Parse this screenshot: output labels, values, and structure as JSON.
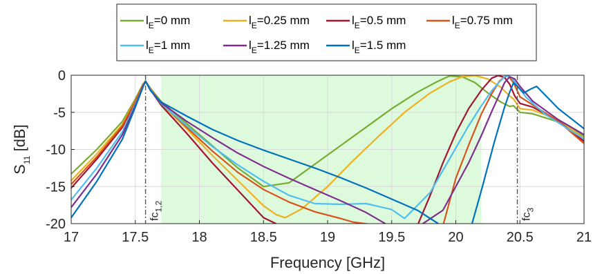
{
  "chart_data": {
    "type": "line",
    "xlabel": "Frequency [GHz]",
    "ylabel_main": "S",
    "ylabel_sub": "11",
    "ylabel_unit": " [dB]",
    "xlim": [
      17,
      21
    ],
    "ylim": [
      -20,
      0
    ],
    "xticks": [
      "17",
      "17.5",
      "18",
      "18.5",
      "19",
      "19.5",
      "20",
      "20.5",
      "21"
    ],
    "xtick_values": [
      17,
      17.5,
      18,
      18.5,
      19,
      19.5,
      20,
      20.5,
      21
    ],
    "yticks": [
      "0",
      "-5",
      "-10",
      "-15",
      "-20"
    ],
    "ytick_values": [
      0,
      -5,
      -10,
      -15,
      -20
    ],
    "grid": true,
    "legend_position": "top-center",
    "highlight_band": {
      "x_start": 17.7,
      "x_end": 20.2,
      "color": "#ddfadd"
    },
    "markers": [
      {
        "x": 17.58,
        "label_main": "fc",
        "label_sub": "1,2"
      },
      {
        "x": 20.48,
        "label_main": "fc",
        "label_sub": "3"
      }
    ],
    "series": [
      {
        "name_main": "l",
        "name_sub": "E",
        "name_rest": "=0 mm",
        "color": "#77ac30",
        "x": [
          17,
          17.2,
          17.4,
          17.5,
          17.56,
          17.58,
          17.62,
          17.7,
          17.9,
          18.1,
          18.3,
          18.5,
          18.7,
          18.9,
          19.1,
          19.3,
          19.5,
          19.7,
          19.85,
          19.95,
          20.05,
          20.15,
          20.25,
          20.35,
          20.42,
          20.45,
          20.5,
          20.6,
          20.8,
          21
        ],
        "y": [
          -13.3,
          -10,
          -6.2,
          -3.2,
          -1.2,
          -0.8,
          -1.8,
          -3.5,
          -6.5,
          -9.5,
          -12.5,
          -15,
          -14.5,
          -12,
          -9.5,
          -7,
          -4.5,
          -2.3,
          -0.9,
          -0.1,
          -0.2,
          -1.0,
          -2.4,
          -3.6,
          -4.2,
          -4.1,
          -5.0,
          -5.2,
          -6.3,
          -8.2
        ]
      },
      {
        "name_main": "l",
        "name_sub": "E",
        "name_rest": "=0.25 mm",
        "color": "#edb120",
        "x": [
          17,
          17.2,
          17.4,
          17.5,
          17.56,
          17.58,
          17.62,
          17.7,
          17.9,
          18.1,
          18.3,
          18.5,
          18.6,
          18.67,
          18.8,
          19.0,
          19.2,
          19.4,
          19.6,
          19.8,
          19.95,
          20.05,
          20.15,
          20.25,
          20.35,
          20.42,
          20.45,
          20.5,
          20.6,
          20.8,
          21
        ],
        "y": [
          -14.2,
          -10.6,
          -6.6,
          -3.4,
          -1.3,
          -0.8,
          -1.9,
          -3.8,
          -7.2,
          -10.8,
          -14.2,
          -17.6,
          -18.8,
          -19.2,
          -18.0,
          -15.0,
          -11.5,
          -8.2,
          -5.0,
          -2.4,
          -0.9,
          -0.2,
          -0.05,
          -0.5,
          -1.6,
          -2.8,
          -3.2,
          -4.5,
          -4.7,
          -6.0,
          -8.5
        ]
      },
      {
        "name_main": "l",
        "name_sub": "E",
        "name_rest": "=0.5 mm",
        "color": "#a2142f",
        "x": [
          17,
          17.2,
          17.4,
          17.5,
          17.56,
          17.58,
          17.62,
          17.7,
          17.9,
          18.1,
          18.3,
          18.5,
          18.62,
          19.7,
          19.8,
          19.9,
          20.0,
          20.1,
          20.2,
          20.28,
          20.33,
          20.38,
          20.42,
          20.46,
          20.5,
          20.6,
          20.8,
          21
        ],
        "y": [
          -15.2,
          -11.3,
          -7.0,
          -3.6,
          -1.4,
          -0.8,
          -2.0,
          -4.0,
          -7.8,
          -11.8,
          -15.5,
          -19.2,
          -20.2,
          -20.3,
          -16.2,
          -11.8,
          -7.8,
          -4.5,
          -2.0,
          -0.4,
          -0.05,
          -0.3,
          -1.2,
          -2.8,
          -3.8,
          -4.3,
          -6.2,
          -8.9
        ]
      },
      {
        "name_main": "l",
        "name_sub": "E",
        "name_rest": "=0.75 mm",
        "color": "#d95319",
        "x": [
          17,
          17.2,
          17.4,
          17.5,
          17.56,
          17.58,
          17.62,
          17.7,
          17.9,
          18.1,
          18.3,
          18.5,
          18.7,
          18.9,
          19.1,
          19.2,
          19.43,
          19.9,
          20.0,
          20.1,
          20.2,
          20.28,
          20.34,
          20.38,
          20.41,
          20.45,
          20.5,
          20.6,
          20.8,
          21
        ],
        "y": [
          -14.7,
          -11.0,
          -6.8,
          -3.5,
          -1.3,
          -0.8,
          -1.9,
          -3.7,
          -7.0,
          -10.2,
          -13.1,
          -15.4,
          -17.1,
          -18.4,
          -19.3,
          -19.8,
          -20.3,
          -20.3,
          -13.9,
          -9.4,
          -5.2,
          -2.5,
          -0.8,
          -0.2,
          -0.1,
          -1.0,
          -2.9,
          -4.0,
          -6.2,
          -9.2
        ]
      },
      {
        "name_main": "l",
        "name_sub": "E",
        "name_rest": "=1 mm",
        "color": "#4dbeee",
        "x": [
          17,
          17.2,
          17.4,
          17.5,
          17.56,
          17.58,
          17.62,
          17.7,
          17.9,
          18.1,
          18.3,
          18.5,
          18.7,
          18.9,
          19.1,
          19.3,
          19.5,
          19.6,
          19.8,
          20.0,
          20.1,
          20.2,
          20.28,
          20.34,
          20.39,
          20.44,
          20.48,
          20.55,
          20.7,
          21
        ],
        "y": [
          -16.8,
          -12.5,
          -7.6,
          -3.9,
          -1.5,
          -0.8,
          -2.0,
          -3.8,
          -6.8,
          -9.6,
          -12.1,
          -14.3,
          -16.2,
          -17.3,
          -17.4,
          -17.3,
          -18.1,
          -19.3,
          -15.8,
          -9.8,
          -6.8,
          -4.1,
          -2.1,
          -0.9,
          -0.05,
          -0.4,
          -1.4,
          -3.0,
          -5.3,
          -8.6
        ]
      },
      {
        "name_main": "l",
        "name_sub": "E",
        "name_rest": "=1.25 mm",
        "color": "#7e2f8e",
        "x": [
          17,
          17.2,
          17.4,
          17.5,
          17.56,
          17.58,
          17.62,
          17.7,
          17.9,
          18.1,
          18.3,
          18.5,
          18.7,
          18.9,
          19.1,
          19.3,
          19.5,
          19.7,
          19.9,
          20.1,
          20.2,
          20.28,
          20.34,
          20.38,
          20.42,
          20.46,
          20.5,
          20.6,
          20.8,
          21
        ],
        "y": [
          -17.8,
          -13.3,
          -8.0,
          -4.1,
          -1.5,
          -0.8,
          -2.1,
          -3.7,
          -6.2,
          -8.4,
          -10.5,
          -12.3,
          -13.9,
          -15.4,
          -16.9,
          -18.5,
          -20.5,
          -20.5,
          -18.2,
          -11.8,
          -8.1,
          -4.9,
          -2.6,
          -1.0,
          -0.2,
          -0.5,
          -1.5,
          -3.5,
          -6.0,
          -8.0
        ]
      },
      {
        "name_main": "l",
        "name_sub": "E",
        "name_rest": "=1.5 mm",
        "color": "#0072bd",
        "x": [
          17,
          17.2,
          17.4,
          17.5,
          17.56,
          17.58,
          17.62,
          17.7,
          17.9,
          18.1,
          18.3,
          18.5,
          18.7,
          18.9,
          19.1,
          19.3,
          19.5,
          19.7,
          19.9,
          20.0,
          20.12,
          20.2,
          20.3,
          20.38,
          20.42,
          20.45,
          20.48,
          20.53,
          20.58,
          20.63,
          20.8,
          21
        ],
        "y": [
          -19.2,
          -14.3,
          -8.6,
          -4.3,
          -1.6,
          -0.8,
          -2.1,
          -3.6,
          -5.5,
          -7.3,
          -8.8,
          -10.1,
          -11.3,
          -12.5,
          -13.8,
          -15.2,
          -16.7,
          -18.2,
          -20.4,
          -20.4,
          -20.4,
          -15.5,
          -9.0,
          -4.3,
          -2.3,
          -1.0,
          -1.5,
          -2.4,
          -1.9,
          -1.5,
          -4.5,
          -7.2
        ]
      }
    ]
  }
}
